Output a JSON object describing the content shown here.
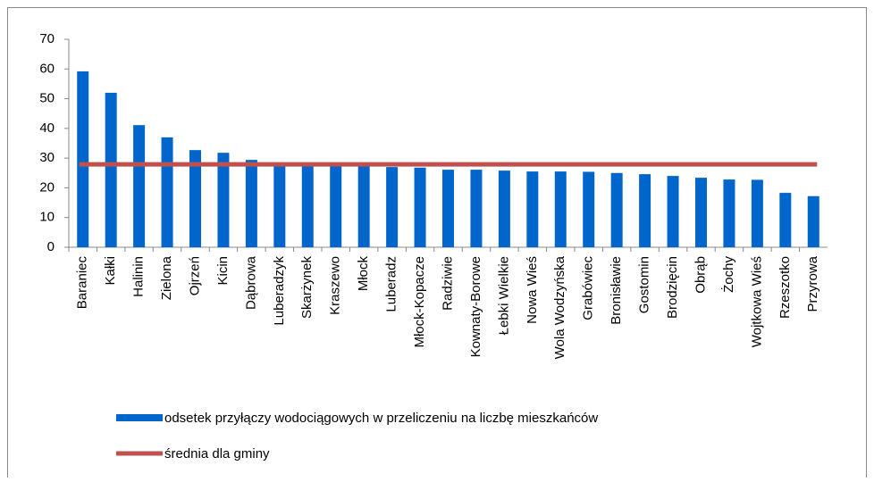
{
  "chart_data": {
    "type": "bar",
    "categories": [
      "Baraniec",
      "Kałki",
      "Halinin",
      "Zielona",
      "Ojrzeń",
      "Kicin",
      "Dąbrowa",
      "Luberadzyk",
      "Skarżynek",
      "Kraszewo",
      "Młock",
      "Luberadz",
      "Młock-Kopacze",
      "Radziwie",
      "Kownaty-Borowe",
      "Łebki Wielkie",
      "Nowa Wieś",
      "Wola Wodzyńska",
      "Grabówiec",
      "Bronisławie",
      "Gostomin",
      "Brodzięcin",
      "Obrąb",
      "Żochy",
      "Wojtkowa Wieś",
      "Rzeszotko",
      "Przyrowa"
    ],
    "series": [
      {
        "name": "odsetek przyłączy wodociągowych w przeliczeniu na liczbę mieszkańców",
        "color": "#0066cc",
        "values": [
          59.2,
          52,
          41.1,
          37,
          32.7,
          31.8,
          29.4,
          28.5,
          28,
          27.5,
          27.3,
          27,
          26.8,
          26.1,
          26.1,
          25.8,
          25.5,
          25.5,
          25.4,
          25,
          24.6,
          24,
          23.4,
          22.8,
          22.7,
          18.3,
          17.2
        ]
      }
    ],
    "average": {
      "name": "średnia dla gminy",
      "color": "#c0504d",
      "value": 27.9
    },
    "ylim": [
      0,
      70
    ],
    "yticks": [
      0,
      10,
      20,
      30,
      40,
      50,
      60,
      70
    ],
    "grid": false
  }
}
